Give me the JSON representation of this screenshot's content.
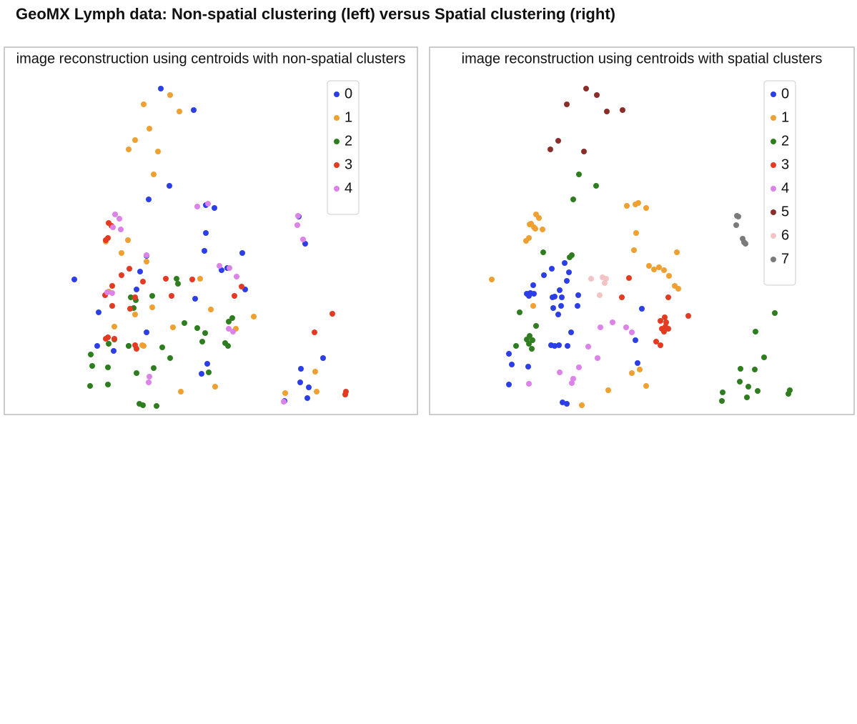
{
  "title": "GeoMX Lymph data: Non-spatial clustering (left) versus Spatial clustering (right)",
  "chart_data": [
    {
      "type": "scatter",
      "title": "image reconstruction using centroids with non-spatial clusters",
      "xlim": [
        0,
        578
      ],
      "ylim": [
        0,
        514
      ],
      "legend": "upper right",
      "series": [
        {
          "name": "0",
          "color": "#2b3ee8",
          "x": [
            219,
            265,
            202,
            231,
            282,
            294,
            282,
            280,
            333,
            199,
            190,
            98,
            185,
            132,
            130,
            153,
            199,
            267,
            304,
            312,
            337,
            284,
            276,
            446,
            415,
            414,
            426,
            424,
            392,
            412,
            421,
            174
          ],
          "y": [
            456,
            426,
            301,
            320,
            293,
            289,
            254,
            229,
            226,
            222,
            200,
            189,
            175,
            143,
            96,
            89,
            115,
            162,
            202,
            205,
            175,
            71,
            57,
            79,
            64,
            45,
            38,
            23,
            19,
            277,
            239,
            96
          ]
        },
        {
          "name": "1",
          "color": "#f0a030",
          "x": [
            232,
            195,
            245,
            203,
            183,
            174,
            215,
            209,
            142,
            173,
            164,
            199,
            146,
            183,
            207,
            274,
            289,
            349,
            324,
            236,
            154,
            195,
            247,
            295,
            435,
            437,
            393,
            193
          ],
          "y": [
            447,
            434,
            424,
            400,
            384,
            371,
            368,
            336,
            242,
            244,
            226,
            214,
            172,
            140,
            150,
            190,
            147,
            137,
            120,
            122,
            123,
            96,
            32,
            39,
            60,
            32,
            30,
            97
          ]
        },
        {
          "name": "2",
          "color": "#2e7d1e",
          "x": [
            241,
            243,
            177,
            184,
            207,
            181,
            252,
            270,
            281,
            277,
            319,
            314,
            309,
            313,
            221,
            232,
            154,
            146,
            121,
            123,
            145,
            120,
            145,
            185,
            209,
            189,
            194,
            213,
            286,
            174
          ],
          "y": [
            190,
            183,
            164,
            160,
            166,
            149,
            128,
            121,
            114,
            102,
            135,
            130,
            100,
            96,
            94,
            79,
            105,
            99,
            84,
            68,
            66,
            40,
            42,
            58,
            65,
            15,
            13,
            12,
            59,
            96
          ]
        },
        {
          "name": "3",
          "color": "#e53a22",
          "x": [
            146,
            150,
            142,
            145,
            175,
            164,
            151,
            141,
            194,
            226,
            234,
            183,
            176,
            151,
            322,
            332,
            263,
            145,
            142,
            154,
            183,
            185,
            459,
            434,
            478,
            477
          ],
          "y": [
            268,
            264,
            244,
            247,
            204,
            195,
            180,
            167,
            186,
            190,
            166,
            164,
            148,
            152,
            166,
            179,
            189,
            108,
            106,
            106,
            97,
            92,
            141,
            115,
            32,
            28
          ]
        },
        {
          "name": "4",
          "color": "#dd82e8",
          "x": [
            155,
            161,
            152,
            163,
            199,
            270,
            285,
            411,
            410,
            418,
            301,
            315,
            325,
            144,
            151,
            314,
            320,
            203,
            202,
            391
          ],
          "y": [
            280,
            274,
            262,
            259,
            223,
            291,
            295,
            278,
            265,
            245,
            208,
            205,
            193,
            171,
            170,
            120,
            116,
            53,
            45,
            18
          ]
        }
      ]
    },
    {
      "type": "scatter",
      "title": "image reconstruction using centroids with spatial clusters",
      "xlim": [
        0,
        594
      ],
      "ylim": [
        0,
        514
      ],
      "legend": "upper right",
      "series": [
        {
          "name": "0",
          "color": "#2b3ee8",
          "x": [
            189,
            195,
            171,
            160,
            192,
            145,
            136,
            141,
            146,
            139,
            182,
            175,
            185,
            172,
            184,
            173,
            180,
            208,
            207,
            297,
            198,
            170,
            175,
            181,
            193,
            288,
            111,
            115,
            138,
            111,
            291,
            186,
            192
          ],
          "y": [
            212,
            199,
            204,
            195,
            187,
            181,
            169,
            170,
            169,
            166,
            174,
            165,
            164,
            164,
            152,
            149,
            140,
            167,
            152,
            148,
            115,
            97,
            96,
            97,
            96,
            104,
            85,
            70,
            67,
            42,
            72,
            17,
            15
          ]
        },
        {
          "name": "1",
          "color": "#f0a030",
          "x": [
            149,
            153,
            142,
            146,
            140,
            148,
            158,
            139,
            135,
            87,
            145,
            276,
            288,
            292,
            303,
            289,
            286,
            346,
            307,
            314,
            321,
            328,
            335,
            343,
            348,
            283,
            294,
            303,
            250,
            213
          ],
          "y": [
            280,
            275,
            267,
            262,
            266,
            260,
            259,
            247,
            243,
            189,
            152,
            292,
            294,
            296,
            289,
            254,
            230,
            227,
            208,
            203,
            206,
            202,
            194,
            180,
            176,
            58,
            63,
            40,
            34,
            13
          ]
        },
        {
          "name": "2",
          "color": "#2e7d1e",
          "x": [
            209,
            233,
            201,
            159,
            199,
            196,
            126,
            149,
            140,
            136,
            144,
            139,
            121,
            143,
            483,
            456,
            468,
            455,
            435,
            434,
            446,
            459,
            444,
            410,
            409,
            504,
            502
          ],
          "y": [
            336,
            320,
            301,
            227,
            223,
            220,
            143,
            124,
            110,
            105,
            104,
            99,
            96,
            92,
            142,
            116,
            80,
            63,
            64,
            46,
            39,
            33,
            24,
            31,
            19,
            34,
            29
          ]
        },
        {
          "name": "3",
          "color": "#e53a22",
          "x": [
            279,
            269,
            334,
            323,
            329,
            331,
            325,
            328,
            334,
            330,
            317,
            323,
            362
          ],
          "y": [
            191,
            164,
            164,
            131,
            136,
            129,
            120,
            116,
            120,
            123,
            102,
            97,
            138
          ]
        },
        {
          "name": "4",
          "color": "#dd82e8",
          "x": [
            239,
            256,
            275,
            283,
            222,
            235,
            209,
            182,
            201,
            199,
            139
          ],
          "y": [
            122,
            129,
            122,
            115,
            95,
            79,
            66,
            59,
            50,
            44,
            43
          ]
        },
        {
          "name": "5",
          "color": "#8b2e2a",
          "x": [
            219,
            234,
            192,
            248,
            270,
            180,
            169,
            216
          ],
          "y": [
            456,
            447,
            434,
            424,
            426,
            383,
            371,
            368
          ]
        },
        {
          "name": "6",
          "color": "#f4c4c4",
          "x": [
            226,
            242,
            247,
            245,
            238
          ],
          "y": [
            190,
            192,
            190,
            184,
            167
          ]
        },
        {
          "name": "7",
          "color": "#7a7a7a",
          "x": [
            430,
            432,
            429,
            438,
            442,
            440
          ],
          "y": [
            278,
            277,
            265,
            246,
            239,
            241
          ]
        }
      ]
    }
  ]
}
